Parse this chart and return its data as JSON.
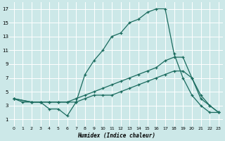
{
  "xlabel": "Humidex (Indice chaleur)",
  "background_color": "#cce8e8",
  "grid_color": "#ffffff",
  "line_color": "#1a6b5e",
  "xlim": [
    -0.5,
    23.5
  ],
  "ylim": [
    0,
    18
  ],
  "xticks": [
    0,
    1,
    2,
    3,
    4,
    5,
    6,
    7,
    8,
    9,
    10,
    11,
    12,
    13,
    14,
    15,
    16,
    17,
    18,
    19,
    20,
    21,
    22,
    23
  ],
  "yticks": [
    1,
    3,
    5,
    7,
    9,
    11,
    13,
    15,
    17
  ],
  "line1_x": [
    0,
    1,
    2,
    3,
    4,
    5,
    6,
    7,
    8,
    9,
    10,
    11,
    12,
    13,
    14,
    15,
    16,
    17,
    18,
    19,
    20,
    21,
    22,
    23
  ],
  "line1_y": [
    4,
    3.5,
    3.5,
    3.5,
    2.5,
    2.5,
    1.5,
    3.5,
    7.5,
    9.5,
    11,
    13,
    13.5,
    15,
    15.5,
    16.5,
    17,
    17,
    10.5,
    7,
    4.5,
    3,
    2,
    2
  ],
  "line2_x": [
    0,
    2,
    3,
    4,
    5,
    6,
    7,
    8,
    9,
    10,
    11,
    12,
    13,
    14,
    15,
    16,
    17,
    18,
    19,
    20,
    21,
    22,
    23
  ],
  "line2_y": [
    4,
    3.5,
    3.5,
    3.5,
    3.5,
    3.5,
    4,
    4.5,
    5,
    5.5,
    6,
    6.5,
    7,
    7.5,
    8,
    8.5,
    9.5,
    10,
    10,
    7,
    4.5,
    3,
    2
  ],
  "line3_x": [
    0,
    2,
    3,
    4,
    5,
    6,
    7,
    8,
    9,
    10,
    11,
    12,
    13,
    14,
    15,
    16,
    17,
    18,
    19,
    20,
    21,
    22,
    23
  ],
  "line3_y": [
    4,
    3.5,
    3.5,
    3.5,
    3.5,
    3.5,
    3.5,
    4,
    4.5,
    4.5,
    4.5,
    5,
    5.5,
    6,
    6.5,
    7,
    7.5,
    8,
    8,
    7,
    4,
    3,
    2
  ]
}
